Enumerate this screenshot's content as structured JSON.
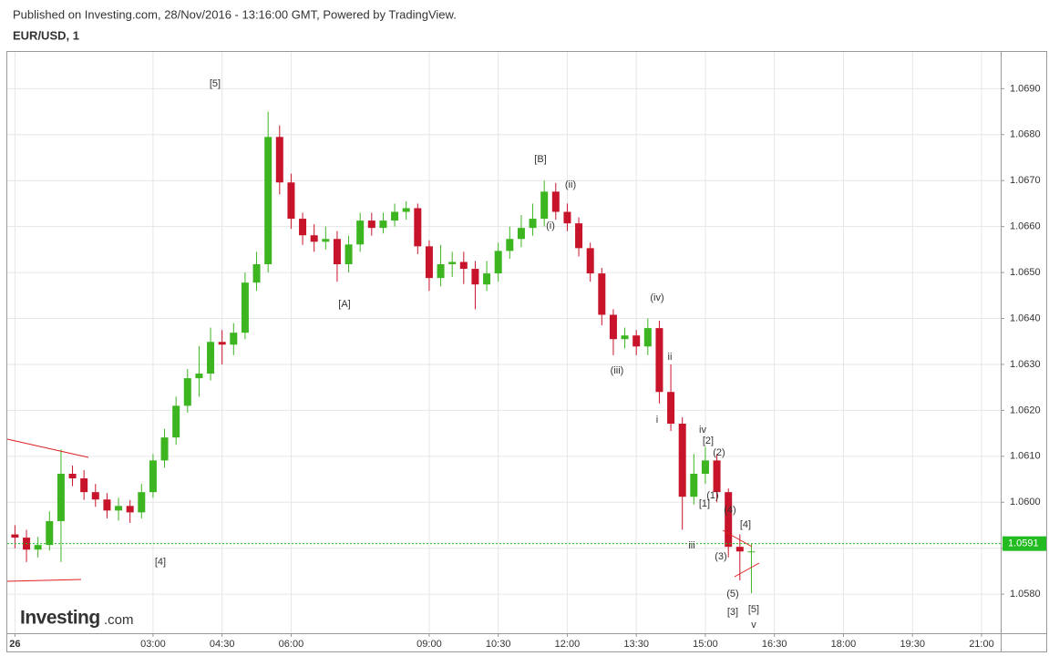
{
  "header": {
    "published": "Published on Investing.com, 28/Nov/2016 - 13:16:00 GMT, Powered by TradingView.",
    "logo": "Investing",
    "logo_suffix": ".com"
  },
  "chart_data": {
    "type": "candlestick",
    "title": "EUR/USD, 1",
    "x": [
      0,
      15,
      30,
      45,
      60,
      75,
      90,
      105,
      120,
      135,
      150,
      165,
      180,
      195,
      210,
      225,
      240,
      255,
      270,
      285,
      300,
      315,
      330,
      345,
      360,
      375,
      390,
      405,
      420,
      435,
      450,
      465,
      480,
      495,
      510,
      525,
      540,
      555,
      570,
      585,
      600,
      615,
      630,
      645,
      660,
      675,
      690,
      705,
      720,
      735,
      750,
      765,
      780,
      795,
      810,
      825,
      840,
      855,
      870,
      885,
      900,
      915,
      930,
      945,
      960
    ],
    "open": [
      1.0593,
      1.05923,
      1.05897,
      1.05907,
      1.05959,
      1.06062,
      1.06052,
      1.06022,
      1.06006,
      1.05982,
      1.05992,
      1.05978,
      1.06022,
      1.06091,
      1.06141,
      1.0621,
      1.0627,
      1.0628,
      1.06349,
      1.06343,
      1.06369,
      1.06478,
      1.06518,
      1.06795,
      1.06696,
      1.06617,
      1.06581,
      1.06567,
      1.06573,
      1.06518,
      1.06561,
      1.06613,
      1.06597,
      1.06613,
      1.06632,
      1.0664,
      1.06557,
      1.06488,
      1.06518,
      1.06523,
      1.06508,
      1.06474,
      1.06498,
      1.06547,
      1.06573,
      1.06597,
      1.06617,
      1.06676,
      1.06632,
      1.06607,
      1.06553,
      1.06498,
      1.06408,
      1.06355,
      1.06363,
      1.06339,
      1.06379,
      1.0624,
      1.06171,
      1.06012,
      1.06062,
      1.06091,
      1.06022,
      1.05903,
      1.05893
    ],
    "high": [
      1.0595,
      1.0594,
      1.05925,
      1.0598,
      1.06115,
      1.0608,
      1.0607,
      1.0604,
      1.0602,
      1.0601,
      1.06005,
      1.0604,
      1.06105,
      1.0616,
      1.0623,
      1.0629,
      1.0634,
      1.0638,
      1.06375,
      1.0639,
      1.065,
      1.06545,
      1.0685,
      1.0682,
      1.06715,
      1.0663,
      1.06605,
      1.066,
      1.0659,
      1.0658,
      1.0663,
      1.0663,
      1.0663,
      1.0665,
      1.06655,
      1.0665,
      1.0657,
      1.0656,
      1.06545,
      1.06545,
      1.06525,
      1.06525,
      1.06565,
      1.066,
      1.06625,
      1.0665,
      1.067,
      1.06695,
      1.0665,
      1.0662,
      1.06565,
      1.0651,
      1.0642,
      1.0638,
      1.06375,
      1.064,
      1.06395,
      1.063,
      1.06185,
      1.06105,
      1.0612,
      1.06105,
      1.0603,
      1.0593,
      1.0591
    ],
    "low": [
      1.059,
      1.0587,
      1.0588,
      1.05895,
      1.0587,
      1.06035,
      1.06005,
      1.0599,
      1.05965,
      1.0596,
      1.05955,
      1.05965,
      1.0601,
      1.06075,
      1.06125,
      1.06195,
      1.0623,
      1.06265,
      1.063,
      1.0632,
      1.06355,
      1.0646,
      1.065,
      1.0667,
      1.06595,
      1.0656,
      1.06545,
      1.0655,
      1.0648,
      1.065,
      1.06545,
      1.0658,
      1.06585,
      1.066,
      1.06615,
      1.0654,
      1.0646,
      1.0647,
      1.0649,
      1.06475,
      1.0642,
      1.0646,
      1.0648,
      1.0653,
      1.06555,
      1.0658,
      1.066,
      1.06615,
      1.0659,
      1.06535,
      1.0648,
      1.06385,
      1.0632,
      1.06335,
      1.0632,
      1.0632,
      1.06215,
      1.06155,
      1.0594,
      1.05995,
      1.0604,
      1.06,
      1.0588,
      1.0583,
      1.05802
    ],
    "close": [
      1.05923,
      1.05897,
      1.05907,
      1.05959,
      1.06062,
      1.06052,
      1.06022,
      1.06006,
      1.05982,
      1.05992,
      1.05978,
      1.06022,
      1.06091,
      1.06141,
      1.0621,
      1.0627,
      1.0628,
      1.06349,
      1.06343,
      1.06369,
      1.06478,
      1.06518,
      1.06795,
      1.06696,
      1.06617,
      1.06581,
      1.06567,
      1.06573,
      1.06518,
      1.06561,
      1.06613,
      1.06597,
      1.06613,
      1.06632,
      1.0664,
      1.06557,
      1.06488,
      1.06518,
      1.06523,
      1.06508,
      1.06474,
      1.06498,
      1.06547,
      1.06573,
      1.06597,
      1.06617,
      1.06676,
      1.06632,
      1.06607,
      1.06553,
      1.06498,
      1.06408,
      1.06355,
      1.06363,
      1.06339,
      1.06379,
      1.0624,
      1.06171,
      1.06012,
      1.06062,
      1.06091,
      1.06022,
      1.05903,
      1.05893,
      1.05893
    ],
    "up_color": "#3cb521",
    "down_color": "#c8142a",
    "xlim": [
      -10,
      1285
    ],
    "xticks": [
      {
        "value": 0,
        "label": "26"
      },
      {
        "value": 180,
        "label": "03:00"
      },
      {
        "value": 270,
        "label": "04:30"
      },
      {
        "value": 360,
        "label": "06:00"
      },
      {
        "value": 540,
        "label": "09:00"
      },
      {
        "value": 630,
        "label": "10:30"
      },
      {
        "value": 720,
        "label": "12:00"
      },
      {
        "value": 810,
        "label": "13:30"
      },
      {
        "value": 900,
        "label": "15:00"
      },
      {
        "value": 990,
        "label": "16:30"
      },
      {
        "value": 1080,
        "label": "18:00"
      },
      {
        "value": 1170,
        "label": "19:30"
      },
      {
        "value": 1260,
        "label": "21:00"
      }
    ],
    "ylim": [
      1.05715,
      1.0698
    ],
    "yticks": [
      {
        "value": 1.058,
        "label": "1.0580"
      },
      {
        "value": 1.059,
        "label": "1.0590"
      },
      {
        "value": 1.06,
        "label": "1.0600"
      },
      {
        "value": 1.061,
        "label": "1.0610"
      },
      {
        "value": 1.062,
        "label": "1.0620"
      },
      {
        "value": 1.063,
        "label": "1.0630"
      },
      {
        "value": 1.064,
        "label": "1.0640"
      },
      {
        "value": 1.065,
        "label": "1.0650"
      },
      {
        "value": 1.066,
        "label": "1.0660"
      },
      {
        "value": 1.067,
        "label": "1.0670"
      },
      {
        "value": 1.068,
        "label": "1.0680"
      },
      {
        "value": 1.069,
        "label": "1.0690"
      }
    ],
    "grid": true,
    "current_price": 1.0591,
    "current_color": "#22bb22",
    "annotations": [
      "[5]",
      "[A]",
      "[4]",
      "[B]",
      "(ii)",
      "(i)",
      "(iv)",
      "(iii)",
      "ii",
      "i",
      "iv",
      "[2]",
      "(2)",
      "(1)",
      "[1]",
      "(4)",
      "[4]",
      "iii",
      "(3)",
      "(5)",
      "[3]",
      "[5]",
      "v"
    ]
  }
}
